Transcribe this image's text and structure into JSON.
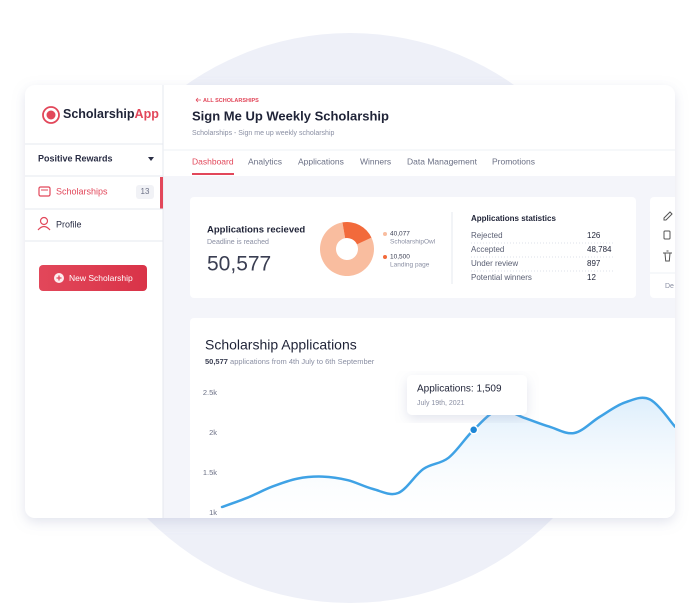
{
  "sidebar": {
    "logo": {
      "brand": "Scholarship",
      "accent": "App"
    },
    "dropdown": "Positive Rewards",
    "nav": [
      {
        "label": "Scholarships",
        "count": "13"
      },
      {
        "label": "Profile"
      }
    ],
    "button": "New Scholarship"
  },
  "header": {
    "back": "ALL SCHOLARSHIPS",
    "title": "Sign Me Up Weekly Scholarship",
    "breadcrumb": "Scholarships - Sign me up weekly scholarship"
  },
  "tabs": [
    "Dashboard",
    "Analytics",
    "Applications",
    "Winners",
    "Data Management",
    "Promotions"
  ],
  "stats": {
    "title": "Applications recieved",
    "subtitle": "Deadline is reached",
    "total": "50,577",
    "table_title": "Applications statistics",
    "rows": [
      [
        "Rejected",
        "126"
      ],
      [
        "Accepted",
        "48,784"
      ],
      [
        "Under review",
        "897"
      ],
      [
        "Potential winners",
        "12"
      ]
    ]
  },
  "side_card": {
    "label": "De"
  },
  "chart_data": [
    {
      "type": "pie",
      "categories": [
        "ScholarshipOwl",
        "Landing page"
      ],
      "values": [
        40077,
        10500
      ],
      "value_labels": [
        "40,077",
        "10,500"
      ],
      "colors": [
        "#f9bd9f",
        "#f26a3b"
      ]
    },
    {
      "type": "line",
      "title": "Scholarship Applications",
      "subtitle": {
        "bold": "50,577",
        "text": "applications from 4th July to 6th September"
      },
      "values": [
        1075,
        1190,
        1330,
        1430,
        1455,
        1410,
        1300,
        1250,
        1550,
        1690,
        2040,
        2290,
        2190,
        2080,
        2000,
        2200,
        2380,
        2420,
        2080
      ],
      "ylim": [
        1000,
        2650
      ],
      "yticks": [
        {
          "value": 1000,
          "label": "1k"
        },
        {
          "value": 1500,
          "label": "1.5k"
        },
        {
          "value": 2000,
          "label": "2k"
        },
        {
          "value": 2500,
          "label": "2.5k"
        }
      ],
      "color": "#3fa2e5",
      "grid": false,
      "tooltip": {
        "title": "Applications: 1,509",
        "date": "July 19th, 2021"
      }
    }
  ]
}
